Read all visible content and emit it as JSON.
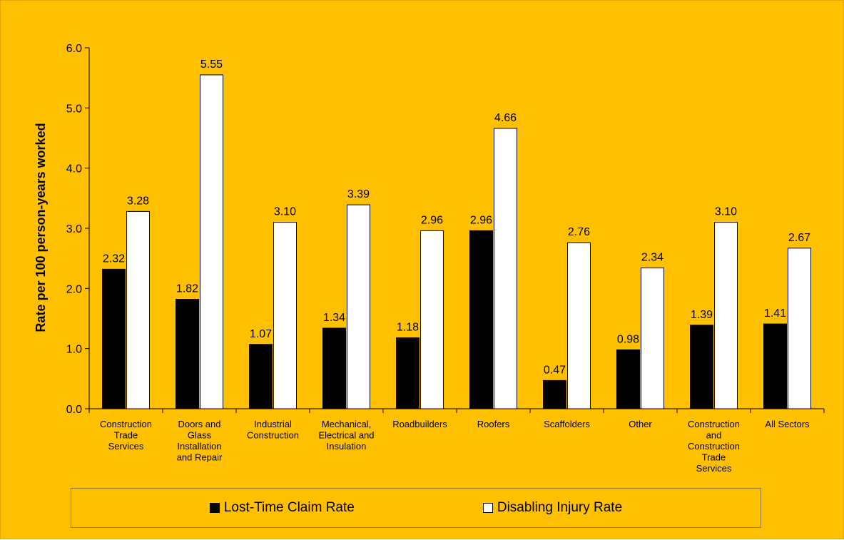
{
  "chart_data": {
    "type": "bar",
    "title": "",
    "xlabel": "",
    "ylabel": "Rate per 100 person-years worked",
    "ylim": [
      0,
      6
    ],
    "yticks": [
      "0.0",
      "1.0",
      "2.0",
      "3.0",
      "4.0",
      "5.0",
      "6.0"
    ],
    "categories": [
      [
        "Construction",
        "Trade",
        "Services"
      ],
      [
        "Doors and",
        "Glass",
        "Installation",
        "and Repair"
      ],
      [
        "Industrial",
        "Construction"
      ],
      [
        "Mechanical,",
        "Electrical and",
        "Insulation"
      ],
      [
        "Roadbuilders"
      ],
      [
        "Roofers"
      ],
      [
        "Scaffolders"
      ],
      [
        "Other"
      ],
      [
        "Construction",
        "and",
        "Construction",
        "Trade",
        "Services"
      ],
      [
        "All Sectors"
      ]
    ],
    "series": [
      {
        "name": "Lost-Time Claim Rate",
        "color": "#000000",
        "values": [
          2.32,
          1.82,
          1.07,
          1.34,
          1.18,
          2.96,
          0.47,
          0.98,
          1.39,
          1.41
        ],
        "labels": [
          "2.32",
          "1.82",
          "1.07",
          "1.34",
          "1.18",
          "2.96",
          "0.47",
          "0.98",
          "1.39",
          "1.41"
        ]
      },
      {
        "name": "Disabling Injury Rate",
        "color": "#FFFFFF",
        "values": [
          3.28,
          5.55,
          3.1,
          3.39,
          2.96,
          4.66,
          2.76,
          2.34,
          3.1,
          2.67
        ],
        "labels": [
          "3.28",
          "5.55",
          "3.10",
          "3.39",
          "2.96",
          "4.66",
          "2.76",
          "2.34",
          "3.10",
          "2.67"
        ]
      }
    ],
    "legend_position": "bottom",
    "grid": false,
    "background_color": "#FFC000"
  }
}
